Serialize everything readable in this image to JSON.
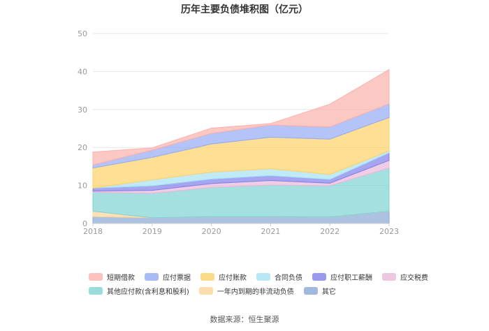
{
  "chart_data": {
    "type": "area",
    "stacked": true,
    "title": "历年主要负债堆积图（亿元）",
    "categories": [
      "2018",
      "2019",
      "2020",
      "2021",
      "2022",
      "2023"
    ],
    "ylim": [
      0,
      50
    ],
    "yticks": [
      0,
      10,
      20,
      30,
      40,
      50
    ],
    "grid": true,
    "legend_position": "bottom",
    "series": [
      {
        "name": "其它",
        "color": "#8aa8d4",
        "values": [
          1.8,
          1.5,
          1.8,
          1.8,
          1.7,
          3.2
        ]
      },
      {
        "name": "一年内到期的非流动负债",
        "color": "#fdd497",
        "values": [
          1.4,
          0.0,
          0.0,
          0.0,
          0.0,
          0.0
        ]
      },
      {
        "name": "其他应付款(含利息和股利)",
        "color": "#7fd3d3",
        "values": [
          5.0,
          6.4,
          7.7,
          8.3,
          8.2,
          11.4
        ]
      },
      {
        "name": "应交税费",
        "color": "#e8b8d8",
        "values": [
          0.3,
          0.8,
          1.0,
          1.2,
          0.7,
          2.0
        ]
      },
      {
        "name": "应付职工薪酬",
        "color": "#8080ea",
        "values": [
          0.8,
          1.2,
          1.2,
          1.3,
          1.0,
          2.0
        ]
      },
      {
        "name": "合同负债",
        "color": "#a6e1f3",
        "values": [
          0.0,
          1.6,
          1.8,
          1.8,
          1.3,
          0.5
        ]
      },
      {
        "name": "应付账款",
        "color": "#fdd166",
        "values": [
          5.3,
          5.9,
          7.4,
          8.3,
          9.3,
          8.8
        ]
      },
      {
        "name": "应付票据",
        "color": "#94aaf5",
        "values": [
          0.8,
          1.9,
          2.8,
          3.2,
          3.2,
          3.6
        ]
      },
      {
        "name": "短期借款",
        "color": "#fbb1ab",
        "values": [
          3.4,
          0.6,
          1.4,
          0.4,
          6.0,
          9.0
        ]
      }
    ]
  },
  "legend_rows": [
    [
      "短期借款",
      "应付票据",
      "应付账款",
      "合同负债",
      "应付职工薪酬",
      "应交税费"
    ],
    [
      "其他应付款(含利息和股利)",
      "一年内到期的非流动负债",
      "其它"
    ]
  ],
  "source": "数据来源：恒生聚源"
}
